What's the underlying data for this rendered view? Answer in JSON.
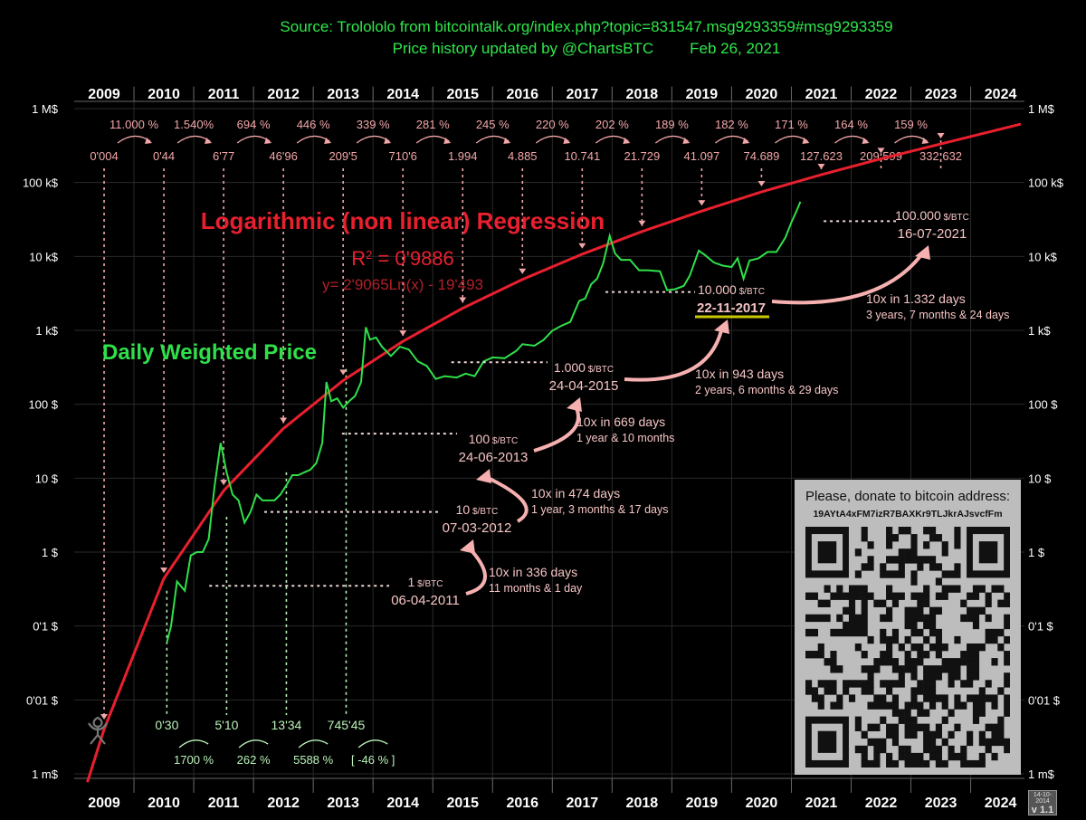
{
  "header": {
    "source": "Source: Trolololo from bitcointalk.org/index.php?topic=831547.msg9293359#msg9293359",
    "updated": "Price history updated by @ChartsBTC",
    "updated_date": "Feb 26, 2021"
  },
  "chart_data": {
    "type": "line",
    "scale": "log",
    "x_range": [
      2009,
      2024.9
    ],
    "ylim": [
      0.001,
      1000000
    ],
    "years_top": [
      "2009",
      "2010",
      "2011",
      "2012",
      "2013",
      "2014",
      "2015",
      "2016",
      "2017",
      "2018",
      "2019",
      "2020",
      "2021",
      "2022",
      "2023",
      "2024"
    ],
    "years_bottom": [
      "2009",
      "2010",
      "2011",
      "2012",
      "2013",
      "2014",
      "2015",
      "2016",
      "2017",
      "2018",
      "2019",
      "2020",
      "2021",
      "2022",
      "2023",
      "2024"
    ],
    "y_ticks": [
      {
        "value": 1000000,
        "label": "1 M$"
      },
      {
        "value": 100000,
        "label": "100 k$"
      },
      {
        "value": 10000,
        "label": "10 k$"
      },
      {
        "value": 1000,
        "label": "1 k$"
      },
      {
        "value": 100,
        "label": "100 $"
      },
      {
        "value": 10,
        "label": "10 $"
      },
      {
        "value": 1,
        "label": "1 $"
      },
      {
        "value": 0.1,
        "label": "0'1 $"
      },
      {
        "value": 0.01,
        "label": "0'01 $"
      },
      {
        "value": 0.001,
        "label": "1 m$"
      }
    ],
    "series_price": {
      "name": "Daily Weighted Price",
      "points": [
        [
          2010.55,
          0.06
        ],
        [
          2010.62,
          0.1
        ],
        [
          2010.72,
          0.4
        ],
        [
          2010.85,
          0.3
        ],
        [
          2010.95,
          0.9
        ],
        [
          2011.05,
          1.0
        ],
        [
          2011.15,
          1.0
        ],
        [
          2011.25,
          1.5
        ],
        [
          2011.35,
          8
        ],
        [
          2011.45,
          30
        ],
        [
          2011.55,
          12
        ],
        [
          2011.65,
          6
        ],
        [
          2011.75,
          5
        ],
        [
          2011.85,
          2.5
        ],
        [
          2011.95,
          3.5
        ],
        [
          2012.05,
          6
        ],
        [
          2012.15,
          5
        ],
        [
          2012.25,
          5
        ],
        [
          2012.35,
          5
        ],
        [
          2012.45,
          6
        ],
        [
          2012.55,
          8
        ],
        [
          2012.65,
          11
        ],
        [
          2012.75,
          11
        ],
        [
          2012.85,
          12
        ],
        [
          2012.95,
          13
        ],
        [
          2013.05,
          16
        ],
        [
          2013.15,
          30
        ],
        [
          2013.22,
          200
        ],
        [
          2013.3,
          110
        ],
        [
          2013.4,
          120
        ],
        [
          2013.5,
          90
        ],
        [
          2013.6,
          110
        ],
        [
          2013.7,
          130
        ],
        [
          2013.8,
          200
        ],
        [
          2013.88,
          1100
        ],
        [
          2013.95,
          750
        ],
        [
          2014.05,
          800
        ],
        [
          2014.15,
          600
        ],
        [
          2014.3,
          450
        ],
        [
          2014.45,
          600
        ],
        [
          2014.6,
          550
        ],
        [
          2014.75,
          380
        ],
        [
          2014.9,
          330
        ],
        [
          2015.05,
          220
        ],
        [
          2015.2,
          240
        ],
        [
          2015.4,
          230
        ],
        [
          2015.55,
          260
        ],
        [
          2015.7,
          240
        ],
        [
          2015.85,
          380
        ],
        [
          2016.0,
          430
        ],
        [
          2016.2,
          420
        ],
        [
          2016.4,
          530
        ],
        [
          2016.5,
          650
        ],
        [
          2016.7,
          620
        ],
        [
          2016.85,
          740
        ],
        [
          2017.0,
          990
        ],
        [
          2017.15,
          1150
        ],
        [
          2017.3,
          1300
        ],
        [
          2017.45,
          2500
        ],
        [
          2017.55,
          2700
        ],
        [
          2017.65,
          4200
        ],
        [
          2017.75,
          5000
        ],
        [
          2017.85,
          8000
        ],
        [
          2017.96,
          19000
        ],
        [
          2018.05,
          11000
        ],
        [
          2018.15,
          9000
        ],
        [
          2018.3,
          9000
        ],
        [
          2018.45,
          6500
        ],
        [
          2018.6,
          6500
        ],
        [
          2018.8,
          6300
        ],
        [
          2018.92,
          3500
        ],
        [
          2019.05,
          3600
        ],
        [
          2019.2,
          4000
        ],
        [
          2019.3,
          5500
        ],
        [
          2019.45,
          12000
        ],
        [
          2019.55,
          10500
        ],
        [
          2019.7,
          8300
        ],
        [
          2019.85,
          7500
        ],
        [
          2020.0,
          7200
        ],
        [
          2020.1,
          9500
        ],
        [
          2020.2,
          5000
        ],
        [
          2020.3,
          8800
        ],
        [
          2020.45,
          9400
        ],
        [
          2020.6,
          11500
        ],
        [
          2020.75,
          11500
        ],
        [
          2020.9,
          18000
        ],
        [
          2021.0,
          29000
        ],
        [
          2021.08,
          40000
        ],
        [
          2021.15,
          55000
        ]
      ]
    },
    "regression": {
      "title": "Logarithmic (non linear) Regression",
      "r2_label": "R",
      "r2_sup": "2",
      "r2_value": " = 0'9886",
      "formula": "y= 2'9065Ln(x) - 19'493"
    },
    "price_label": "Daily Weighted Price",
    "top_prices": [
      {
        "x": 2009.5,
        "label": "0'004"
      },
      {
        "x": 2010.5,
        "label": "0'44"
      },
      {
        "x": 2011.5,
        "label": "6'77"
      },
      {
        "x": 2012.5,
        "label": "46'96"
      },
      {
        "x": 2013.5,
        "label": "209'5"
      },
      {
        "x": 2014.5,
        "label": "710'6"
      },
      {
        "x": 2015.5,
        "label": "1.994"
      },
      {
        "x": 2016.5,
        "label": "4.885"
      },
      {
        "x": 2017.5,
        "label": "10.741"
      },
      {
        "x": 2018.5,
        "label": "21.729"
      },
      {
        "x": 2019.5,
        "label": "41.097"
      },
      {
        "x": 2020.5,
        "label": "74.689"
      },
      {
        "x": 2021.5,
        "label": "127.623"
      },
      {
        "x": 2022.5,
        "label": "209.599"
      },
      {
        "x": 2023.5,
        "label": "332.632"
      }
    ],
    "top_percents": [
      {
        "x": 2010.0,
        "label": "11.000 %"
      },
      {
        "x": 2011.0,
        "label": "1.540%"
      },
      {
        "x": 2012.0,
        "label": "694 %"
      },
      {
        "x": 2013.0,
        "label": "446 %"
      },
      {
        "x": 2014.0,
        "label": "339 %"
      },
      {
        "x": 2015.0,
        "label": "281 %"
      },
      {
        "x": 2016.0,
        "label": "245 %"
      },
      {
        "x": 2017.0,
        "label": "220 %"
      },
      {
        "x": 2018.0,
        "label": "202 %"
      },
      {
        "x": 2019.0,
        "label": "189 %"
      },
      {
        "x": 2020.0,
        "label": "182 %"
      },
      {
        "x": 2021.0,
        "label": "171 %"
      },
      {
        "x": 2022.0,
        "label": "164 %"
      },
      {
        "x": 2023.0,
        "label": "159 %"
      }
    ],
    "bottom_prices": [
      {
        "x": 2010.55,
        "label": "0'30"
      },
      {
        "x": 2011.55,
        "label": "5'10"
      },
      {
        "x": 2012.55,
        "label": "13'34"
      },
      {
        "x": 2013.55,
        "label": "745'45"
      }
    ],
    "bottom_percents": [
      {
        "x": 2011.0,
        "label": "1700 %"
      },
      {
        "x": 2012.0,
        "label": "262 %"
      },
      {
        "x": 2013.0,
        "label": "5588 %"
      },
      {
        "x": 2014.0,
        "label": "[ -46 % ]"
      }
    ],
    "milestones": [
      {
        "price": "1",
        "unit": " $/BTC",
        "date": "06-04-2011",
        "x": 2011.26,
        "value": 0.35,
        "note1": "10x in 336 days",
        "note2": "11 months & 1 day"
      },
      {
        "price": "10",
        "unit": " $/BTC",
        "date": "07-03-2012",
        "x": 2012.18,
        "value": 3.5,
        "note1": "10x in 474 days",
        "note2": "1 year, 3 months & 17 days"
      },
      {
        "price": "100",
        "unit": " $/BTC",
        "date": "24-06-2013",
        "x": 2013.48,
        "value": 40,
        "note1": "10x in 669 days",
        "note2": "1 year & 10 months"
      },
      {
        "price": "1.000",
        "unit": " $/BTC",
        "date": "24-04-2015",
        "x": 2015.31,
        "value": 370,
        "note1": "10x in 943 days",
        "note2": "2 years, 6 months & 29 days"
      },
      {
        "price": "10.000",
        "unit": " $/BTC",
        "date": "22-11-2017",
        "x": 2017.89,
        "value": 3300,
        "note1": "10x  in 1.332 days",
        "note2": "3 years, 7 months & 24 days"
      },
      {
        "price": "100.000",
        "unit": " $/BTC",
        "date": "16-07-2021",
        "x": 2021.54,
        "value": 30000,
        "note1": "",
        "note2": ""
      }
    ]
  },
  "donate": {
    "title": "Please, donate to bitcoin address:",
    "address": "19AYtA4xFM7izR7BAXKr9TLJkrAJsvcfFm"
  },
  "version": {
    "date": "14-10-2014",
    "label": "v 1.1"
  },
  "colors": {
    "price": "#2fe04a",
    "regression": "#e8202e",
    "annot": "#f2a6a8",
    "green_annot": "#b9f2b9"
  }
}
